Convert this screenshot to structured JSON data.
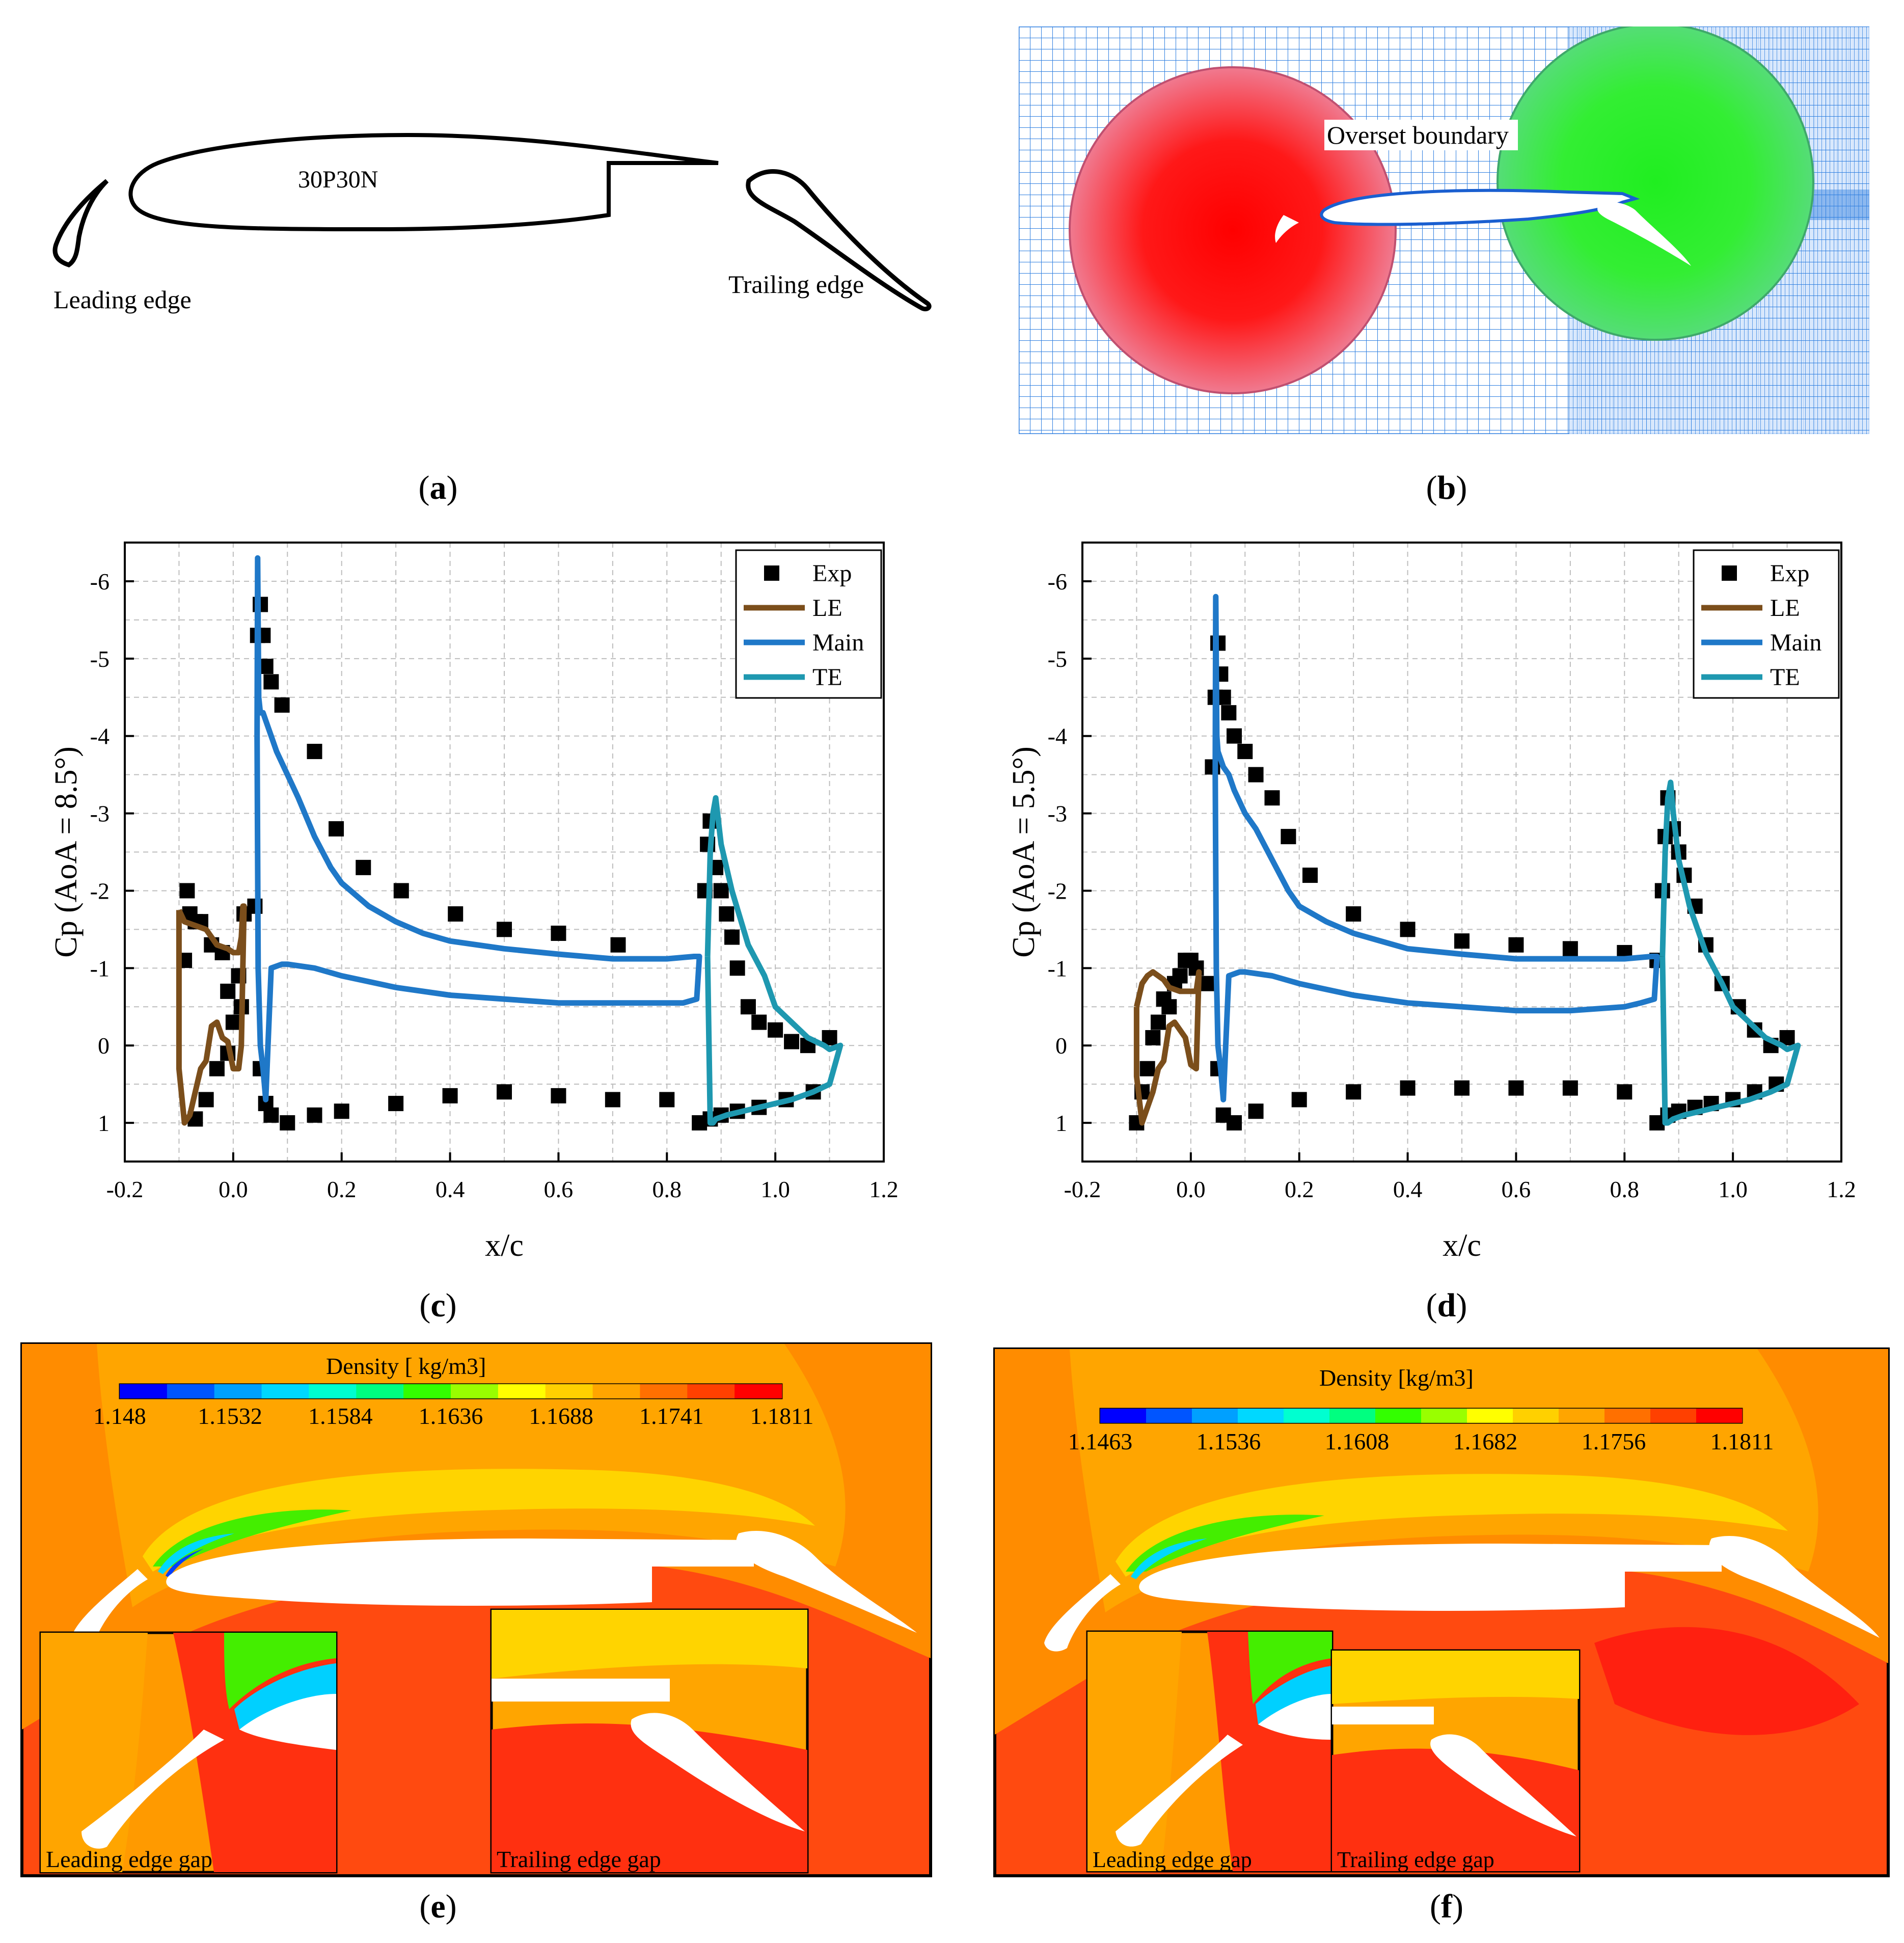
{
  "figure": {
    "panels": [
      {
        "id": "a",
        "label": "a"
      },
      {
        "id": "b",
        "label": "b"
      },
      {
        "id": "c",
        "label": "c"
      },
      {
        "id": "d",
        "label": "d"
      },
      {
        "id": "e",
        "label": "e"
      },
      {
        "id": "f",
        "label": "f"
      }
    ]
  },
  "panel_a": {
    "airfoil_name": "30P30N",
    "leading_edge_label": "Leading edge",
    "trailing_edge_label": "Trailing edge"
  },
  "panel_b": {
    "overset_label": "Overset boundary",
    "colors": {
      "background_grid": "#2f7fe0",
      "slat_grid": "#ff1a1a",
      "flap_grid": "#22dd22"
    }
  },
  "legend": {
    "entries": [
      {
        "name": "Exp",
        "style": "square",
        "color": "#000000"
      },
      {
        "name": "LE",
        "style": "line",
        "color": "#7b4e1b"
      },
      {
        "name": "Main",
        "style": "line",
        "color": "#1f78c8"
      },
      {
        "name": "TE",
        "style": "line",
        "color": "#1e98b0"
      }
    ]
  },
  "chart_data": [
    {
      "panel": "c",
      "type": "line",
      "xlabel": "x/c",
      "ylabel": "Cp (AoA = 8.5°)",
      "xlim": [
        -0.2,
        1.2
      ],
      "ylim": [
        1.5,
        -6.5
      ],
      "y_inverted": true,
      "grid": true,
      "legend_position": "top-right",
      "x_ticks": [
        "-0.2",
        "0.0",
        "0.2",
        "0.4",
        "0.6",
        "0.8",
        "1.0",
        "1.2"
      ],
      "y_ticks": [
        "-6",
        "-5",
        "-4",
        "-3",
        "-2",
        "-1",
        "0",
        "1"
      ],
      "series": [
        {
          "name": "Exp",
          "kind": "scatter",
          "x": [
            -0.09,
            -0.085,
            -0.08,
            -0.07,
            -0.06,
            -0.04,
            -0.02,
            -0.01,
            0.0,
            0.01,
            0.015,
            0.02,
            0.04,
            0.045,
            0.05,
            0.055,
            0.06,
            0.07,
            0.09,
            0.15,
            0.19,
            0.24,
            0.31,
            0.41,
            0.5,
            0.6,
            0.71,
            0.87,
            0.875,
            0.88,
            0.89,
            0.9,
            0.91,
            0.92,
            0.93,
            0.95,
            0.97,
            1.0,
            1.03,
            1.06,
            1.1,
            1.07,
            1.02,
            0.97,
            0.93,
            0.9,
            0.88,
            0.86,
            0.8,
            0.7,
            0.6,
            0.5,
            0.4,
            0.3,
            0.2,
            0.15,
            0.1,
            0.07,
            0.06,
            0.05,
            -0.07,
            -0.05,
            -0.03,
            -0.01
          ],
          "y": [
            -1.1,
            -2.0,
            -1.7,
            -1.6,
            -1.6,
            -1.3,
            -1.2,
            -0.7,
            -0.3,
            -0.9,
            -0.5,
            -1.7,
            -1.8,
            -5.3,
            -5.7,
            -5.3,
            -4.9,
            -4.7,
            -4.4,
            -3.8,
            -2.8,
            -2.3,
            -2.0,
            -1.7,
            -1.5,
            -1.45,
            -1.3,
            -2.0,
            -2.6,
            -2.9,
            -2.3,
            -2.0,
            -1.7,
            -1.4,
            -1.0,
            -0.5,
            -0.3,
            -0.2,
            -0.05,
            0.0,
            -0.1,
            0.6,
            0.7,
            0.8,
            0.85,
            0.9,
            0.95,
            1.0,
            0.7,
            0.7,
            0.65,
            0.6,
            0.65,
            0.75,
            0.85,
            0.9,
            1.0,
            0.9,
            0.75,
            0.3,
            0.95,
            0.7,
            0.3,
            0.1
          ]
        },
        {
          "name": "LE",
          "kind": "line",
          "x": [
            -0.1,
            -0.09,
            -0.07,
            -0.05,
            -0.03,
            -0.01,
            0.0,
            0.01,
            0.015,
            0.018,
            0.02,
            0.015,
            0.01,
            0.0,
            -0.01,
            -0.02,
            -0.03,
            -0.04,
            -0.05,
            -0.06,
            -0.07,
            -0.08,
            -0.09,
            -0.1,
            -0.1
          ],
          "y": [
            -1.75,
            -1.6,
            -1.55,
            -1.5,
            -1.3,
            -1.25,
            -1.2,
            -1.2,
            -1.4,
            -1.8,
            -1.8,
            0.0,
            0.3,
            0.3,
            -0.05,
            -0.1,
            -0.3,
            -0.25,
            0.2,
            0.3,
            0.6,
            0.9,
            1.0,
            0.3,
            -1.75
          ]
        },
        {
          "name": "Main",
          "kind": "line",
          "x": [
            0.044,
            0.045,
            0.047,
            0.05,
            0.055,
            0.06,
            0.07,
            0.08,
            0.1,
            0.12,
            0.15,
            0.18,
            0.2,
            0.25,
            0.3,
            0.35,
            0.4,
            0.5,
            0.6,
            0.7,
            0.75,
            0.8,
            0.85,
            0.86,
            0.855,
            0.83,
            0.8,
            0.7,
            0.6,
            0.5,
            0.4,
            0.3,
            0.2,
            0.15,
            0.1,
            0.09,
            0.07,
            0.06,
            0.055,
            0.05,
            0.046,
            0.044
          ],
          "y": [
            -4.0,
            -6.3,
            -4.5,
            -4.3,
            -4.3,
            -4.2,
            -4.0,
            -3.8,
            -3.5,
            -3.2,
            -2.7,
            -2.3,
            -2.1,
            -1.8,
            -1.6,
            -1.45,
            -1.35,
            -1.25,
            -1.18,
            -1.12,
            -1.12,
            -1.12,
            -1.15,
            -1.15,
            -0.6,
            -0.55,
            -0.55,
            -0.55,
            -0.55,
            -0.6,
            -0.65,
            -0.75,
            -0.9,
            -1.0,
            -1.05,
            -1.05,
            -1.0,
            0.7,
            0.3,
            0.0,
            -1.0,
            -4.0
          ]
        },
        {
          "name": "TE",
          "kind": "line",
          "x": [
            0.875,
            0.88,
            0.885,
            0.89,
            0.9,
            0.92,
            0.95,
            0.98,
            1.0,
            1.03,
            1.06,
            1.09,
            1.1,
            1.12,
            1.1,
            1.07,
            1.03,
            1.0,
            0.97,
            0.94,
            0.91,
            0.89,
            0.885,
            0.88,
            0.875
          ],
          "y": [
            -1.15,
            -2.5,
            -3.0,
            -3.2,
            -2.6,
            -2.0,
            -1.3,
            -0.9,
            -0.5,
            -0.3,
            -0.1,
            0.0,
            0.05,
            0.0,
            0.5,
            0.6,
            0.7,
            0.75,
            0.8,
            0.85,
            0.9,
            0.95,
            1.0,
            1.0,
            -1.15
          ]
        }
      ]
    },
    {
      "panel": "d",
      "type": "line",
      "xlabel": "x/c",
      "ylabel": "Cp (AoA = 5.5°)",
      "xlim": [
        -0.2,
        1.2
      ],
      "ylim": [
        1.5,
        -6.5
      ],
      "y_inverted": true,
      "grid": true,
      "legend_position": "top-right",
      "x_ticks": [
        "-0.2",
        "0.0",
        "0.2",
        "0.4",
        "0.6",
        "0.8",
        "1.0",
        "1.2"
      ],
      "y_ticks": [
        "-6",
        "-5",
        "-4",
        "-3",
        "-2",
        "-1",
        "0",
        "1"
      ],
      "series": [
        {
          "name": "Exp",
          "kind": "scatter",
          "x": [
            -0.1,
            -0.09,
            -0.08,
            -0.07,
            -0.06,
            -0.05,
            -0.04,
            -0.03,
            -0.02,
            -0.01,
            0.0,
            0.01,
            0.03,
            0.04,
            0.045,
            0.05,
            0.055,
            0.06,
            0.07,
            0.08,
            0.1,
            0.12,
            0.15,
            0.18,
            0.22,
            0.3,
            0.4,
            0.5,
            0.6,
            0.7,
            0.8,
            0.86,
            0.87,
            0.875,
            0.88,
            0.89,
            0.9,
            0.91,
            0.93,
            0.95,
            0.98,
            1.01,
            1.04,
            1.07,
            1.1,
            1.08,
            1.04,
            1.0,
            0.96,
            0.93,
            0.9,
            0.88,
            0.86,
            0.8,
            0.7,
            0.6,
            0.5,
            0.4,
            0.3,
            0.2,
            0.12,
            0.08,
            0.06,
            0.05
          ],
          "y": [
            1.0,
            0.6,
            0.3,
            -0.1,
            -0.3,
            -0.6,
            -0.5,
            -0.8,
            -0.9,
            -1.1,
            -1.1,
            -1.0,
            -0.8,
            -3.6,
            -4.5,
            -5.2,
            -4.8,
            -4.5,
            -4.3,
            -4.0,
            -3.8,
            -3.5,
            -3.2,
            -2.7,
            -2.2,
            -1.7,
            -1.5,
            -1.35,
            -1.3,
            -1.25,
            -1.2,
            -1.1,
            -2.0,
            -2.7,
            -3.2,
            -2.8,
            -2.5,
            -2.2,
            -1.8,
            -1.3,
            -0.8,
            -0.5,
            -0.2,
            0.0,
            -0.1,
            0.5,
            0.6,
            0.7,
            0.75,
            0.8,
            0.85,
            0.9,
            1.0,
            0.6,
            0.55,
            0.55,
            0.55,
            0.55,
            0.6,
            0.7,
            0.85,
            1.0,
            0.9,
            0.3
          ]
        },
        {
          "name": "LE",
          "kind": "line",
          "x": [
            -0.1,
            -0.09,
            -0.08,
            -0.07,
            -0.06,
            -0.05,
            -0.04,
            -0.02,
            0.0,
            0.01,
            0.015,
            0.01,
            0.0,
            -0.01,
            -0.02,
            -0.03,
            -0.04,
            -0.05,
            -0.06,
            -0.07,
            -0.08,
            -0.09,
            -0.1,
            -0.1
          ],
          "y": [
            -0.5,
            -0.8,
            -0.9,
            -0.95,
            -0.9,
            -0.85,
            -0.75,
            -0.7,
            -0.7,
            -0.7,
            -0.95,
            0.3,
            0.25,
            -0.1,
            -0.2,
            -0.3,
            -0.25,
            0.2,
            0.3,
            0.6,
            0.8,
            1.0,
            0.4,
            -0.5
          ]
        },
        {
          "name": "Main",
          "kind": "line",
          "x": [
            0.045,
            0.046,
            0.048,
            0.05,
            0.055,
            0.06,
            0.07,
            0.08,
            0.1,
            0.12,
            0.15,
            0.18,
            0.2,
            0.25,
            0.3,
            0.35,
            0.4,
            0.5,
            0.6,
            0.7,
            0.75,
            0.8,
            0.85,
            0.86,
            0.855,
            0.83,
            0.8,
            0.7,
            0.6,
            0.5,
            0.4,
            0.3,
            0.2,
            0.15,
            0.1,
            0.09,
            0.07,
            0.06,
            0.055,
            0.05,
            0.047,
            0.045
          ],
          "y": [
            -3.5,
            -5.8,
            -4.0,
            -3.8,
            -3.7,
            -3.6,
            -3.5,
            -3.3,
            -3.0,
            -2.8,
            -2.4,
            -2.0,
            -1.8,
            -1.6,
            -1.45,
            -1.35,
            -1.25,
            -1.18,
            -1.12,
            -1.12,
            -1.12,
            -1.12,
            -1.15,
            -1.15,
            -0.6,
            -0.55,
            -0.5,
            -0.45,
            -0.45,
            -0.5,
            -0.55,
            -0.65,
            -0.8,
            -0.9,
            -0.95,
            -0.95,
            -0.9,
            0.7,
            0.3,
            0.0,
            -1.0,
            -3.5
          ]
        },
        {
          "name": "TE",
          "kind": "line",
          "x": [
            0.87,
            0.875,
            0.88,
            0.885,
            0.89,
            0.9,
            0.92,
            0.95,
            0.98,
            1.0,
            1.03,
            1.06,
            1.09,
            1.1,
            1.12,
            1.1,
            1.07,
            1.03,
            1.0,
            0.97,
            0.94,
            0.91,
            0.89,
            0.88,
            0.875,
            0.87
          ],
          "y": [
            -1.15,
            -2.5,
            -3.2,
            -3.4,
            -3.0,
            -2.4,
            -1.8,
            -1.2,
            -0.8,
            -0.5,
            -0.3,
            -0.1,
            0.0,
            0.05,
            0.0,
            0.5,
            0.6,
            0.7,
            0.75,
            0.8,
            0.85,
            0.9,
            0.95,
            1.0,
            1.0,
            -1.15
          ]
        }
      ]
    }
  ],
  "panel_e": {
    "colorbar_title": "Density [ kg/m3]",
    "colorbar_ticks": [
      "1.148",
      "1.1532",
      "1.1584",
      "1.1636",
      "1.1688",
      "1.1741",
      "1.1811"
    ],
    "inset_left_label": "Leading edge gap",
    "inset_right_label": "Trailing edge gap"
  },
  "panel_f": {
    "colorbar_title": "Density [kg/m3]",
    "colorbar_ticks": [
      "1.1463",
      "1.1536",
      "1.1608",
      "1.1682",
      "1.1756",
      "1.1811"
    ],
    "inset_left_label": "Leading edge gap",
    "inset_right_label": "Trailing edge gap"
  },
  "colormap": [
    "#0000ff",
    "#0055ff",
    "#00a0ff",
    "#00d8ff",
    "#00ffd0",
    "#00ff80",
    "#33ff00",
    "#99ff00",
    "#ffff00",
    "#ffd000",
    "#ffa500",
    "#ff7000",
    "#ff4000",
    "#ff0000"
  ]
}
